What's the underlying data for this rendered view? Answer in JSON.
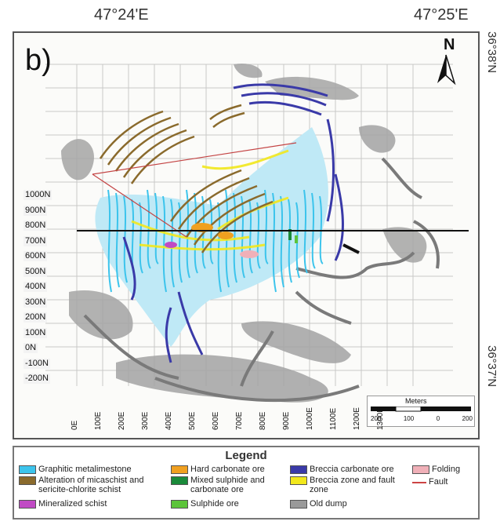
{
  "coordinates": {
    "top_left": "47°24'E",
    "top_right": "47°25'E",
    "right_top": "36°38'N",
    "right_bottom": "36°37'N"
  },
  "panel_label": "b)",
  "north_label": "N",
  "northings": [
    "1000N",
    "900N",
    "800N",
    "700N",
    "600N",
    "500N",
    "400N",
    "300N",
    "200N",
    "100N",
    "0N",
    "-100N",
    "-200N"
  ],
  "eastings": [
    "0E",
    "100E",
    "200E",
    "300E",
    "400E",
    "500E",
    "600E",
    "700E",
    "800E",
    "900E",
    "1000E",
    "1100E",
    "1200E",
    "1300E"
  ],
  "scale": {
    "title": "Meters",
    "ticks": [
      "200",
      "100",
      "0",
      "200"
    ]
  },
  "legend": {
    "title": "Legend",
    "items": [
      {
        "label": "Graphitic metalimestone",
        "color": "#3cc4ec",
        "type": "fill"
      },
      {
        "label": "Alteration of micaschist and sericite-chlorite schist",
        "color": "#8a6a2c",
        "type": "fill"
      },
      {
        "label": "Mineralized schist",
        "color": "#c04ac4",
        "type": "fill"
      },
      {
        "label": "Hard carbonate ore",
        "color": "#f0a020",
        "type": "fill"
      },
      {
        "label": "Mixed sulphide and carbonate ore",
        "color": "#1a8a3a",
        "type": "fill"
      },
      {
        "label": "Sulphide ore",
        "color": "#5cc43a",
        "type": "fill"
      },
      {
        "label": "Breccia carbonate ore",
        "color": "#3a3aa8",
        "type": "fill"
      },
      {
        "label": "Breccia zone and fault zone",
        "color": "#f2e81c",
        "type": "fill"
      },
      {
        "label": "Old dump",
        "color": "#999999",
        "type": "fill"
      },
      {
        "label": "Folding",
        "color": "#f0b0b8",
        "type": "fill"
      },
      {
        "label": "Fault",
        "color": "#c44444",
        "type": "line"
      }
    ]
  }
}
